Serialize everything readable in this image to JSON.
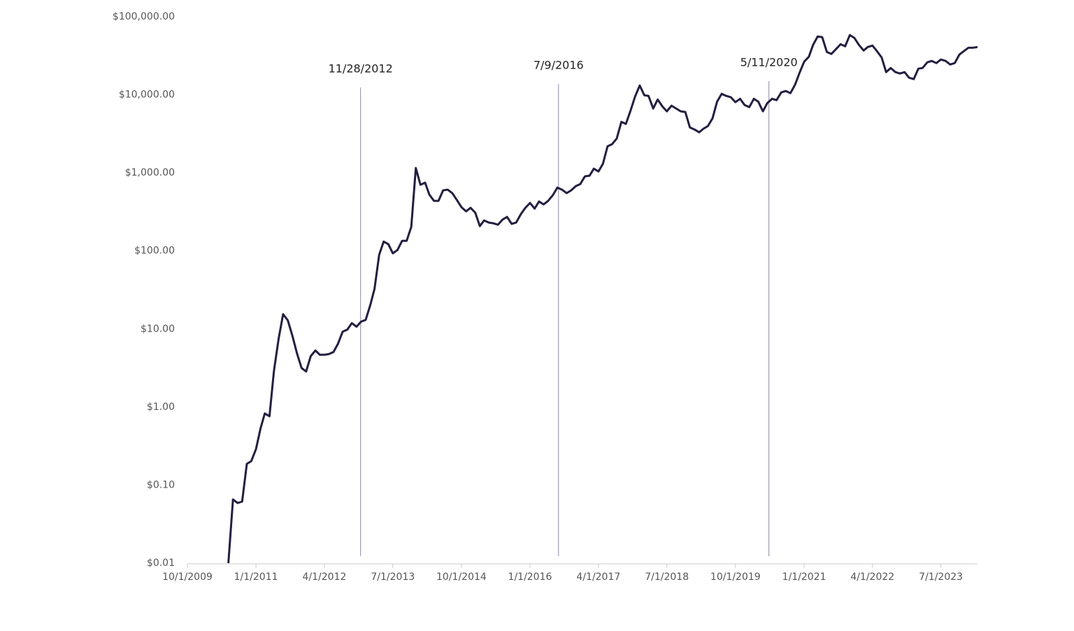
{
  "chart_data": {
    "type": "line",
    "x": [
      "7/1/2010",
      "8/1/2010",
      "9/1/2010",
      "10/1/2010",
      "11/1/2010",
      "12/1/2010",
      "1/1/2011",
      "2/1/2011",
      "3/1/2011",
      "4/1/2011",
      "5/1/2011",
      "6/1/2011",
      "7/1/2011",
      "8/1/2011",
      "9/1/2011",
      "10/1/2011",
      "11/1/2011",
      "12/1/2011",
      "1/1/2012",
      "2/1/2012",
      "3/1/2012",
      "4/1/2012",
      "5/1/2012",
      "6/1/2012",
      "7/1/2012",
      "8/1/2012",
      "9/1/2012",
      "10/1/2012",
      "11/1/2012",
      "12/1/2012",
      "1/1/2013",
      "2/1/2013",
      "3/1/2013",
      "4/1/2013",
      "5/1/2013",
      "6/1/2013",
      "7/1/2013",
      "8/1/2013",
      "9/1/2013",
      "10/1/2013",
      "11/1/2013",
      "12/1/2013",
      "1/1/2014",
      "2/1/2014",
      "3/1/2014",
      "4/1/2014",
      "5/1/2014",
      "6/1/2014",
      "7/1/2014",
      "8/1/2014",
      "9/1/2014",
      "10/1/2014",
      "11/1/2014",
      "12/1/2014",
      "1/1/2015",
      "2/1/2015",
      "3/1/2015",
      "4/1/2015",
      "5/1/2015",
      "6/1/2015",
      "7/1/2015",
      "8/1/2015",
      "9/1/2015",
      "10/1/2015",
      "11/1/2015",
      "12/1/2015",
      "1/1/2016",
      "2/1/2016",
      "3/1/2016",
      "4/1/2016",
      "5/1/2016",
      "6/1/2016",
      "7/1/2016",
      "8/1/2016",
      "9/1/2016",
      "10/1/2016",
      "11/1/2016",
      "12/1/2016",
      "1/1/2017",
      "2/1/2017",
      "3/1/2017",
      "4/1/2017",
      "5/1/2017",
      "6/1/2017",
      "7/1/2017",
      "8/1/2017",
      "9/1/2017",
      "10/1/2017",
      "11/1/2017",
      "12/1/2017",
      "1/1/2018",
      "2/1/2018",
      "3/1/2018",
      "4/1/2018",
      "5/1/2018",
      "6/1/2018",
      "7/1/2018",
      "8/1/2018",
      "9/1/2018",
      "10/1/2018",
      "11/1/2018",
      "12/1/2018",
      "1/1/2019",
      "2/1/2019",
      "3/1/2019",
      "4/1/2019",
      "5/1/2019",
      "6/1/2019",
      "7/1/2019",
      "8/1/2019",
      "9/1/2019",
      "10/1/2019",
      "11/1/2019",
      "12/1/2019",
      "1/1/2020",
      "2/1/2020",
      "3/1/2020",
      "4/1/2020",
      "5/1/2020",
      "6/1/2020",
      "7/1/2020",
      "8/1/2020",
      "9/1/2020",
      "10/1/2020",
      "11/1/2020",
      "12/1/2020",
      "1/1/2021",
      "2/1/2021",
      "3/1/2021",
      "4/1/2021",
      "5/1/2021",
      "6/1/2021",
      "7/1/2021",
      "8/1/2021",
      "9/1/2021",
      "10/1/2021",
      "11/1/2021",
      "12/1/2021",
      "1/1/2022",
      "2/1/2022",
      "3/1/2022",
      "4/1/2022",
      "5/1/2022",
      "6/1/2022",
      "7/1/2022",
      "8/1/2022",
      "9/1/2022",
      "10/1/2022",
      "11/1/2022",
      "12/1/2022",
      "1/1/2023",
      "2/1/2023",
      "3/1/2023",
      "4/1/2023",
      "5/1/2023",
      "6/1/2023",
      "7/1/2023",
      "8/1/2023",
      "9/1/2023",
      "10/1/2023",
      "11/1/2023",
      "12/1/2023",
      "1/1/2024",
      "2/1/2024",
      "3/1/2024"
    ],
    "series": [
      {
        "color": "#231f40",
        "values": [
          0.01,
          0.0654,
          0.059,
          0.0615,
          0.187,
          0.203,
          0.289,
          0.536,
          0.828,
          0.762,
          2.91,
          7.52,
          15.5,
          12.9,
          8.17,
          4.88,
          3.16,
          2.85,
          4.49,
          5.3,
          4.68,
          4.68,
          4.78,
          5.08,
          6.51,
          9.25,
          9.84,
          11.9,
          10.7,
          12.4,
          13.1,
          20.3,
          32.6,
          89.5,
          132,
          122,
          93.3,
          103,
          135,
          135,
          204,
          1156,
          705,
          750,
          528,
          438,
          438,
          598,
          610,
          550,
          448,
          364,
          322,
          357,
          309,
          208,
          246,
          231,
          226,
          217,
          251,
          273,
          222,
          231,
          296,
          357,
          412,
          349,
          430,
          395,
          438,
          517,
          649,
          610,
          550,
          598,
          676,
          719,
          902,
          921,
          1132,
          1042,
          1309,
          2193,
          2333,
          2750,
          4510,
          4245,
          6280,
          9480,
          13190,
          9890,
          9680,
          6680,
          8730,
          7110,
          6150,
          7260,
          6680,
          6150,
          6030,
          3830,
          3600,
          3310,
          3670,
          3990,
          5000,
          8200,
          10300,
          9680,
          9290,
          8040,
          8910,
          7410,
          6960,
          8910,
          8200,
          6150,
          7870,
          8910,
          8550,
          10740,
          11190,
          10510,
          13460,
          19140,
          26600,
          30760,
          43650,
          55950,
          54800,
          35500,
          33400,
          38560,
          44570,
          41900,
          58340,
          53700,
          43650,
          36980,
          41020,
          42760,
          36300,
          30130,
          19540,
          22090,
          19540,
          18750,
          19540,
          16560,
          15890,
          21640,
          22090,
          26060,
          27170,
          25530,
          28310,
          27170,
          24490,
          25530,
          32730,
          36300,
          40180,
          40180,
          41020
        ]
      }
    ],
    "xlim": [
      "10/1/2009",
      "3/1/2024"
    ],
    "xticks": [
      "10/1/2009",
      "1/1/2011",
      "4/1/2012",
      "7/1/2013",
      "10/1/2014",
      "1/1/2016",
      "4/1/2017",
      "7/1/2018",
      "10/1/2019",
      "1/1/2021",
      "4/1/2022",
      "7/1/2023"
    ],
    "ylim": [
      0.01,
      100000
    ],
    "log_y": true,
    "yticks": [
      {
        "value": 0.01,
        "label": "$0.01"
      },
      {
        "value": 0.1,
        "label": "$0.10"
      },
      {
        "value": 1,
        "label": "$1.00"
      },
      {
        "value": 10,
        "label": "$10.00"
      },
      {
        "value": 100,
        "label": "$100.00"
      },
      {
        "value": 1000,
        "label": "$1,000.00"
      },
      {
        "value": 10000,
        "label": "$10,000.00"
      },
      {
        "value": 100000,
        "label": "$100,000.00"
      }
    ],
    "annotations": [
      "11/28/2012",
      "7/9/2016",
      "5/11/2020"
    ]
  }
}
